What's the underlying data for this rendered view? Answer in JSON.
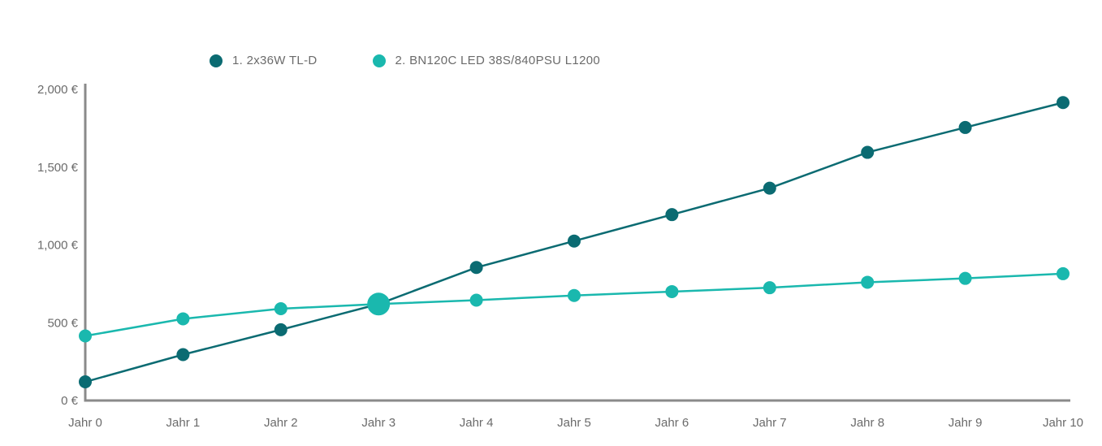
{
  "colors": {
    "series1": "#0b6b72",
    "series2": "#1ab8ae",
    "axis": "#8a8a8a",
    "text": "#6b6b6b"
  },
  "legend": [
    {
      "label": "1. 2x36W TL-D",
      "color": "#0b6b72"
    },
    {
      "label": "2. BN120C LED 38S/840PSU L1200",
      "color": "#1ab8ae"
    }
  ],
  "chart_data": {
    "type": "line",
    "x": [
      "Jahr 0",
      "Jahr 1",
      "Jahr 2",
      "Jahr 3",
      "Jahr 4",
      "Jahr 5",
      "Jahr 6",
      "Jahr 7",
      "Jahr 8",
      "Jahr 9",
      "Jahr 10"
    ],
    "yticks": [
      "0 €",
      "500 €",
      "1,000 €",
      "1,500 €",
      "2,000 €"
    ],
    "ylim": [
      0,
      2000
    ],
    "grid": false,
    "legend_position": "top",
    "series": [
      {
        "name": "1. 2x36W TL-D",
        "values": [
          120,
          295,
          455,
          620,
          855,
          1025,
          1195,
          1365,
          1595,
          1755,
          1915
        ]
      },
      {
        "name": "2. BN120C LED 38S/840PSU L1200",
        "values": [
          415,
          525,
          590,
          620,
          645,
          675,
          700,
          725,
          760,
          785,
          815
        ]
      }
    ],
    "annotations": [
      {
        "type": "intersection-marker",
        "x": "Jahr 3",
        "y": 620
      }
    ]
  }
}
